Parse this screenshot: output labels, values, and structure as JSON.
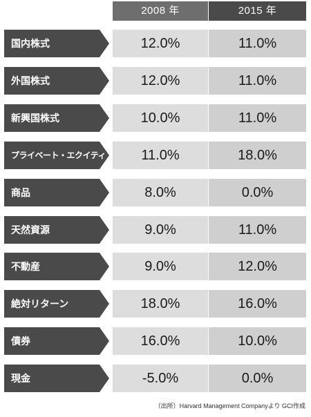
{
  "headers": {
    "col_2008": "2008 年",
    "col_2015": "2015 年"
  },
  "rows": [
    {
      "label": "国内株式",
      "v2008": "12.0%",
      "v2015": "11.0%"
    },
    {
      "label": "外国株式",
      "v2008": "12.0%",
      "v2015": "11.0%"
    },
    {
      "label": "新興国株式",
      "v2008": "10.0%",
      "v2015": "11.0%"
    },
    {
      "label": "プライベート・エクイティ",
      "v2008": "11.0%",
      "v2015": "18.0%"
    },
    {
      "label": "商品",
      "v2008": "8.0%",
      "v2015": "0.0%"
    },
    {
      "label": "天然資源",
      "v2008": "9.0%",
      "v2015": "11.0%"
    },
    {
      "label": "不動産",
      "v2008": "9.0%",
      "v2015": "12.0%"
    },
    {
      "label": "絶対リターン",
      "v2008": "18.0%",
      "v2015": "16.0%"
    },
    {
      "label": "債券",
      "v2008": "16.0%",
      "v2015": "10.0%"
    },
    {
      "label": "現金",
      "v2008": "-5.0%",
      "v2015": "0.0%"
    }
  ],
  "source": "（出所）Harvard Management Companyより GCI作成"
}
